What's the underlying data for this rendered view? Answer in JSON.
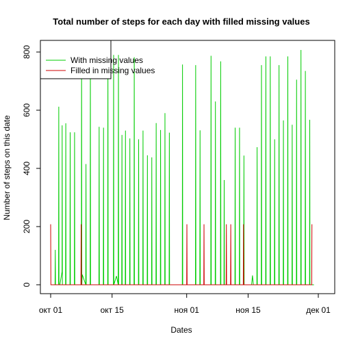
{
  "chart_data": {
    "type": "line",
    "title": "Total number of steps for each day with filled missing values",
    "xlabel": "Dates",
    "ylabel": "Number of steps on this date",
    "xlim": [
      0,
      61
    ],
    "ylim": [
      -30,
      830
    ],
    "x_ticks": [
      {
        "day": 0,
        "label": "окт 01"
      },
      {
        "day": 14,
        "label": "окт 15"
      },
      {
        "day": 31,
        "label": "ноя 01"
      },
      {
        "day": 45,
        "label": "ноя 15"
      },
      {
        "day": 61,
        "label": "дек 01"
      }
    ],
    "y_ticks": [
      0,
      200,
      400,
      600,
      800
    ],
    "grid": false,
    "legend_position": "top-left",
    "series": [
      {
        "name": "With missing values",
        "color": "#00cc00",
        "values": [
          {
            "day": 0.0,
            "y": 0
          },
          {
            "day": 1.0,
            "y": 0
          },
          {
            "day": 1.05,
            "y": 120
          },
          {
            "day": 1.1,
            "y": 0
          },
          {
            "day": 1.8,
            "y": 0
          },
          {
            "day": 1.85,
            "y": 612
          },
          {
            "day": 1.9,
            "y": 0
          },
          {
            "day": 2.1,
            "y": 0
          },
          {
            "day": 2.6,
            "y": 45
          },
          {
            "day": 2.62,
            "y": 548
          },
          {
            "day": 2.68,
            "y": 0
          },
          {
            "day": 3.4,
            "y": 0
          },
          {
            "day": 3.45,
            "y": 555
          },
          {
            "day": 3.5,
            "y": 0
          },
          {
            "day": 4.4,
            "y": 0
          },
          {
            "day": 4.45,
            "y": 524
          },
          {
            "day": 4.5,
            "y": 0
          },
          {
            "day": 5.4,
            "y": 0
          },
          {
            "day": 5.45,
            "y": 524
          },
          {
            "day": 5.5,
            "y": 0
          },
          {
            "day": 7.0,
            "y": 0
          },
          {
            "day": 7.05,
            "y": 790
          },
          {
            "day": 7.1,
            "y": 0
          },
          {
            "day": 7.2,
            "y": 35
          },
          {
            "day": 8.0,
            "y": 0
          },
          {
            "day": 8.05,
            "y": 415
          },
          {
            "day": 8.1,
            "y": 0
          },
          {
            "day": 9.0,
            "y": 0
          },
          {
            "day": 9.05,
            "y": 790
          },
          {
            "day": 9.1,
            "y": 0
          },
          {
            "day": 11.0,
            "y": 0
          },
          {
            "day": 11.05,
            "y": 543
          },
          {
            "day": 11.1,
            "y": 0
          },
          {
            "day": 12.0,
            "y": 0
          },
          {
            "day": 12.05,
            "y": 540
          },
          {
            "day": 12.1,
            "y": 0
          },
          {
            "day": 13.0,
            "y": 0
          },
          {
            "day": 13.05,
            "y": 790
          },
          {
            "day": 13.1,
            "y": 0
          },
          {
            "day": 14.3,
            "y": 0
          },
          {
            "day": 14.35,
            "y": 790
          },
          {
            "day": 14.4,
            "y": 0
          },
          {
            "day": 15.0,
            "y": 30
          },
          {
            "day": 15.4,
            "y": 0
          },
          {
            "day": 15.45,
            "y": 790
          },
          {
            "day": 15.5,
            "y": 0
          },
          {
            "day": 16.2,
            "y": 0
          },
          {
            "day": 16.25,
            "y": 515
          },
          {
            "day": 16.3,
            "y": 0
          },
          {
            "day": 17.0,
            "y": 0
          },
          {
            "day": 17.05,
            "y": 530
          },
          {
            "day": 17.1,
            "y": 0
          },
          {
            "day": 18.0,
            "y": 0
          },
          {
            "day": 18.05,
            "y": 503
          },
          {
            "day": 18.1,
            "y": 0
          },
          {
            "day": 19.0,
            "y": 0
          },
          {
            "day": 19.05,
            "y": 782
          },
          {
            "day": 19.1,
            "y": 0
          },
          {
            "day": 20.0,
            "y": 0
          },
          {
            "day": 20.05,
            "y": 500
          },
          {
            "day": 20.1,
            "y": 0
          },
          {
            "day": 21.0,
            "y": 0
          },
          {
            "day": 21.05,
            "y": 530
          },
          {
            "day": 21.1,
            "y": 0
          },
          {
            "day": 22.0,
            "y": 0
          },
          {
            "day": 22.05,
            "y": 445
          },
          {
            "day": 22.1,
            "y": 0
          },
          {
            "day": 23.0,
            "y": 0
          },
          {
            "day": 23.05,
            "y": 438
          },
          {
            "day": 23.1,
            "y": 0
          },
          {
            "day": 24.0,
            "y": 0
          },
          {
            "day": 24.05,
            "y": 556
          },
          {
            "day": 24.1,
            "y": 0
          },
          {
            "day": 25.0,
            "y": 0
          },
          {
            "day": 25.05,
            "y": 532
          },
          {
            "day": 25.1,
            "y": 0
          },
          {
            "day": 26.0,
            "y": 0
          },
          {
            "day": 26.05,
            "y": 590
          },
          {
            "day": 26.1,
            "y": 0
          },
          {
            "day": 27.0,
            "y": 0
          },
          {
            "day": 27.05,
            "y": 523
          },
          {
            "day": 27.1,
            "y": 0
          },
          {
            "day": 30.0,
            "y": 0
          },
          {
            "day": 30.05,
            "y": 757
          },
          {
            "day": 30.1,
            "y": 0
          },
          {
            "day": 33.0,
            "y": 0
          },
          {
            "day": 33.05,
            "y": 755
          },
          {
            "day": 33.1,
            "y": 0
          },
          {
            "day": 34.0,
            "y": 0
          },
          {
            "day": 34.05,
            "y": 531
          },
          {
            "day": 34.1,
            "y": 0
          },
          {
            "day": 36.5,
            "y": 0
          },
          {
            "day": 36.55,
            "y": 787
          },
          {
            "day": 36.6,
            "y": 0
          },
          {
            "day": 37.5,
            "y": 0
          },
          {
            "day": 37.55,
            "y": 630
          },
          {
            "day": 37.6,
            "y": 0
          },
          {
            "day": 38.7,
            "y": 0
          },
          {
            "day": 38.75,
            "y": 768
          },
          {
            "day": 38.8,
            "y": 0
          },
          {
            "day": 39.5,
            "y": 0
          },
          {
            "day": 39.55,
            "y": 360
          },
          {
            "day": 39.6,
            "y": 0
          },
          {
            "day": 42.0,
            "y": 0
          },
          {
            "day": 42.05,
            "y": 540
          },
          {
            "day": 42.1,
            "y": 0
          },
          {
            "day": 43.0,
            "y": 0
          },
          {
            "day": 43.05,
            "y": 540
          },
          {
            "day": 43.1,
            "y": 0
          },
          {
            "day": 44.0,
            "y": 0
          },
          {
            "day": 44.05,
            "y": 444
          },
          {
            "day": 44.1,
            "y": 0
          },
          {
            "day": 45.8,
            "y": 0
          },
          {
            "day": 46.0,
            "y": 32
          },
          {
            "day": 46.2,
            "y": 0
          },
          {
            "day": 47.0,
            "y": 0
          },
          {
            "day": 47.05,
            "y": 473
          },
          {
            "day": 47.1,
            "y": 0
          },
          {
            "day": 48.0,
            "y": 0
          },
          {
            "day": 48.05,
            "y": 755
          },
          {
            "day": 48.1,
            "y": 0
          },
          {
            "day": 49.0,
            "y": 0
          },
          {
            "day": 49.05,
            "y": 785
          },
          {
            "day": 49.1,
            "y": 0
          },
          {
            "day": 50.0,
            "y": 0
          },
          {
            "day": 50.05,
            "y": 785
          },
          {
            "day": 50.1,
            "y": 0
          },
          {
            "day": 51.0,
            "y": 0
          },
          {
            "day": 51.05,
            "y": 500
          },
          {
            "day": 51.1,
            "y": 0
          },
          {
            "day": 52.0,
            "y": 0
          },
          {
            "day": 52.05,
            "y": 755
          },
          {
            "day": 52.1,
            "y": 0
          },
          {
            "day": 53.0,
            "y": 0
          },
          {
            "day": 53.05,
            "y": 565
          },
          {
            "day": 53.1,
            "y": 0
          },
          {
            "day": 54.0,
            "y": 0
          },
          {
            "day": 54.05,
            "y": 785
          },
          {
            "day": 54.1,
            "y": 0
          },
          {
            "day": 55.0,
            "y": 0
          },
          {
            "day": 55.05,
            "y": 550
          },
          {
            "day": 55.1,
            "y": 0
          },
          {
            "day": 56.0,
            "y": 0
          },
          {
            "day": 56.05,
            "y": 705
          },
          {
            "day": 56.1,
            "y": 0
          },
          {
            "day": 57.0,
            "y": 0
          },
          {
            "day": 57.05,
            "y": 807
          },
          {
            "day": 57.1,
            "y": 0
          },
          {
            "day": 58.0,
            "y": 0
          },
          {
            "day": 58.05,
            "y": 735
          },
          {
            "day": 58.1,
            "y": 0
          },
          {
            "day": 59.0,
            "y": 0
          },
          {
            "day": 59.05,
            "y": 567
          },
          {
            "day": 59.1,
            "y": 0
          },
          {
            "day": 60.0,
            "y": 0
          }
        ]
      },
      {
        "name": "Filled in missing values",
        "color": "#cc0000",
        "values": [
          {
            "day": 0.0,
            "y": 208
          },
          {
            "day": 0.05,
            "y": 0
          },
          {
            "day": 6.9,
            "y": 0
          },
          {
            "day": 6.95,
            "y": 208
          },
          {
            "day": 7.0,
            "y": 0
          },
          {
            "day": 31.0,
            "y": 0
          },
          {
            "day": 31.05,
            "y": 208
          },
          {
            "day": 31.1,
            "y": 0
          },
          {
            "day": 34.9,
            "y": 0
          },
          {
            "day": 34.95,
            "y": 208
          },
          {
            "day": 35.0,
            "y": 0
          },
          {
            "day": 40.0,
            "y": 0
          },
          {
            "day": 40.05,
            "y": 208
          },
          {
            "day": 40.1,
            "y": 0
          },
          {
            "day": 41.0,
            "y": 0
          },
          {
            "day": 41.05,
            "y": 208
          },
          {
            "day": 41.1,
            "y": 0
          },
          {
            "day": 43.9,
            "y": 0
          },
          {
            "day": 43.95,
            "y": 208
          },
          {
            "day": 44.0,
            "y": 0
          },
          {
            "day": 59.5,
            "y": 0
          },
          {
            "day": 59.55,
            "y": 208
          }
        ]
      }
    ]
  }
}
